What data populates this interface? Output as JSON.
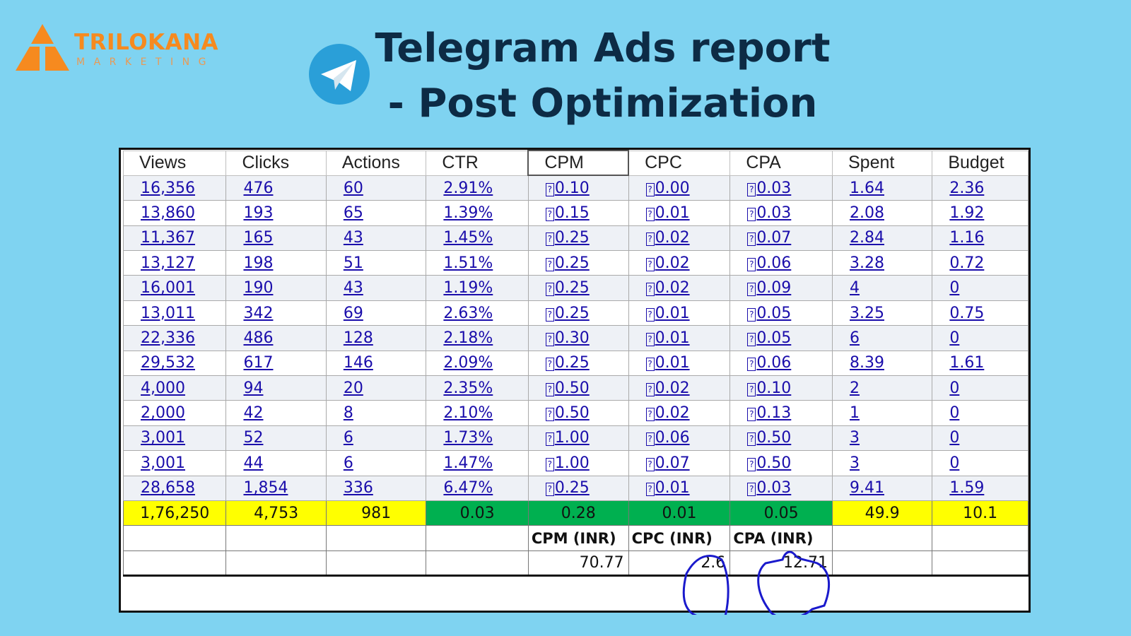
{
  "logo": {
    "name": "TRILOKANA",
    "tagline": "MARKETING",
    "color": "#f68a1f"
  },
  "title": {
    "line1": "Telegram Ads report",
    "line2": "- Post Optimization"
  },
  "table": {
    "headers": [
      "Views",
      "Clicks",
      "Actions",
      "CTR",
      "CPM",
      "CPC",
      "CPA",
      "Spent",
      "Budget"
    ],
    "currency_glyph": "?",
    "currency_columns": [
      4,
      5,
      6
    ],
    "rows": [
      [
        "16,356",
        "476",
        "60",
        "2.91%",
        "0.10",
        "0.00",
        "0.03",
        "1.64",
        "2.36"
      ],
      [
        "13,860",
        "193",
        "65",
        "1.39%",
        "0.15",
        "0.01",
        "0.03",
        "2.08",
        "1.92"
      ],
      [
        "11,367",
        "165",
        "43",
        "1.45%",
        "0.25",
        "0.02",
        "0.07",
        "2.84",
        "1.16"
      ],
      [
        "13,127",
        "198",
        "51",
        "1.51%",
        "0.25",
        "0.02",
        "0.06",
        "3.28",
        "0.72"
      ],
      [
        "16,001",
        "190",
        "43",
        "1.19%",
        "0.25",
        "0.02",
        "0.09",
        "4",
        "0"
      ],
      [
        "13,011",
        "342",
        "69",
        "2.63%",
        "0.25",
        "0.01",
        "0.05",
        "3.25",
        "0.75"
      ],
      [
        "22,336",
        "486",
        "128",
        "2.18%",
        "0.30",
        "0.01",
        "0.05",
        "6",
        "0"
      ],
      [
        "29,532",
        "617",
        "146",
        "2.09%",
        "0.25",
        "0.01",
        "0.06",
        "8.39",
        "1.61"
      ],
      [
        "4,000",
        "94",
        "20",
        "2.35%",
        "0.50",
        "0.02",
        "0.10",
        "2",
        "0"
      ],
      [
        "2,000",
        "42",
        "8",
        "2.10%",
        "0.50",
        "0.02",
        "0.13",
        "1",
        "0"
      ],
      [
        "3,001",
        "52",
        "6",
        "1.73%",
        "1.00",
        "0.06",
        "0.50",
        "3",
        "0"
      ],
      [
        "3,001",
        "44",
        "6",
        "1.47%",
        "1.00",
        "0.07",
        "0.50",
        "3",
        "0"
      ],
      [
        "28,658",
        "1,854",
        "336",
        "6.47%",
        "0.25",
        "0.01",
        "0.03",
        "9.41",
        "1.59"
      ]
    ],
    "totals": [
      "1,76,250",
      "4,753",
      "981",
      "0.03",
      "0.28",
      "0.01",
      "0.05",
      "49.9",
      "10.1"
    ],
    "totals_colors": {
      "yellow": "#ffff00",
      "green": "#00b050"
    },
    "inr_labels": [
      "",
      "",
      "",
      "",
      "CPM (INR)",
      "CPC (INR)",
      "CPA (INR)",
      "",
      ""
    ],
    "inr_values": [
      "",
      "",
      "",
      "",
      "70.77",
      "2.6",
      "12.71",
      "",
      ""
    ]
  }
}
